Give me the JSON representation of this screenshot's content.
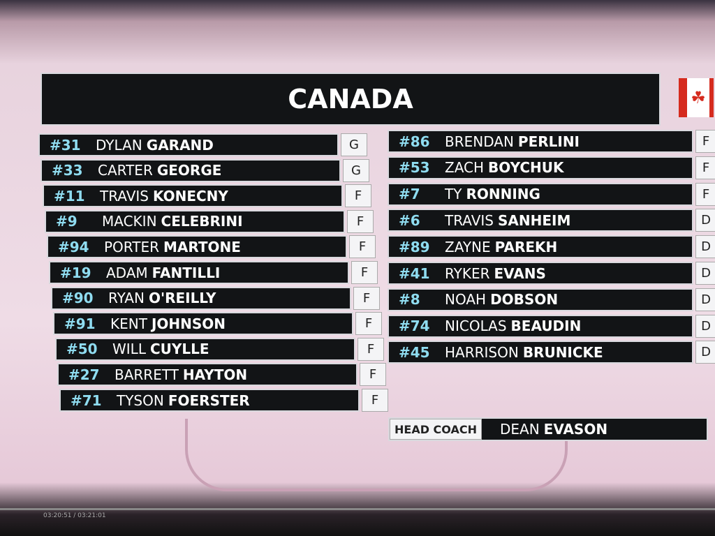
{
  "title": "CANADA",
  "left": [
    {
      "number": "#31",
      "first": "DYLAN",
      "last": "GARAND",
      "pos": "G"
    },
    {
      "number": "#33",
      "first": "CARTER",
      "last": "GEORGE",
      "pos": "G"
    },
    {
      "number": "#11",
      "first": "TRAVIS",
      "last": "KONECNY",
      "pos": "F"
    },
    {
      "number": "#9",
      "first": "MACKIN",
      "last": "CELEBRINI",
      "pos": "F"
    },
    {
      "number": "#94",
      "first": "PORTER",
      "last": "MARTONE",
      "pos": "F"
    },
    {
      "number": "#19",
      "first": "ADAM",
      "last": "FANTILLI",
      "pos": "F"
    },
    {
      "number": "#90",
      "first": "RYAN",
      "last": "O'REILLY",
      "pos": "F"
    },
    {
      "number": "#91",
      "first": "KENT",
      "last": "JOHNSON",
      "pos": "F"
    },
    {
      "number": "#50",
      "first": "WILL",
      "last": "CUYLLE",
      "pos": "F"
    },
    {
      "number": "#27",
      "first": "BARRETT",
      "last": "HAYTON",
      "pos": "F"
    },
    {
      "number": "#71",
      "first": "TYSON",
      "last": "FOERSTER",
      "pos": "F"
    }
  ],
  "right": [
    {
      "number": "#86",
      "first": "BRENDAN",
      "last": "PERLINI",
      "pos": "F"
    },
    {
      "number": "#53",
      "first": "ZACH",
      "last": "BOYCHUK",
      "pos": "F"
    },
    {
      "number": "#7",
      "first": "TY",
      "last": "RONNING",
      "pos": "F"
    },
    {
      "number": "#6",
      "first": "TRAVIS",
      "last": "SANHEIM",
      "pos": "D"
    },
    {
      "number": "#89",
      "first": "ZAYNE",
      "last": "PAREKH",
      "pos": "D"
    },
    {
      "number": "#41",
      "first": "RYKER",
      "last": "EVANS",
      "pos": "D"
    },
    {
      "number": "#8",
      "first": "NOAH",
      "last": "DOBSON",
      "pos": "D"
    },
    {
      "number": "#74",
      "first": "NICOLAS",
      "last": "BEAUDIN",
      "pos": "D"
    },
    {
      "number": "#45",
      "first": "HARRISON",
      "last": "BRUNICKE",
      "pos": "D"
    }
  ],
  "coach": {
    "label": "HEAD COACH",
    "first": "DEAN",
    "last": "EVASON"
  },
  "timestamp": "03:20:51 / 03:21:01"
}
